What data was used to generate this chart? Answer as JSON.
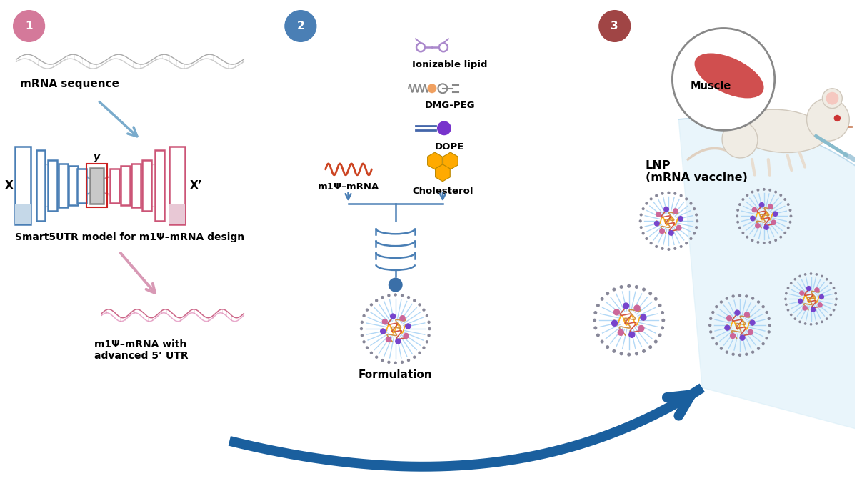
{
  "bg_color": "#ffffff",
  "step1_color": "#d4799a",
  "step2_color": "#4a7fb5",
  "step3_color": "#a04545",
  "blue_arrow": "#7aabcc",
  "pink_arrow": "#d899b5",
  "dark_blue": "#1a5f9e",
  "mrna_color": "#999999",
  "blue_box": "#4a7fb5",
  "pink_box": "#cc5577",
  "gray_box": "#aaaaaa",
  "label1": "mRNA sequence",
  "label2": "Smart5UTR model for m1Ψ–mRNA design",
  "label3": "m1Ψ–mRNA with\nadvanced 5’ UTR",
  "label_il": "Ionizable lipid",
  "label_dmg": "DMG-PEG",
  "label_dope": "DOPE",
  "label_m1psi": "m1Ψ–mRNA",
  "label_chol": "Cholesterol",
  "label_form": "Formulation",
  "label_lnp": "LNP\n(mRNA vaccine)",
  "label_muscle": "Muscle",
  "x_label": "X",
  "x_prime_label": "X’",
  "y_label": "y"
}
